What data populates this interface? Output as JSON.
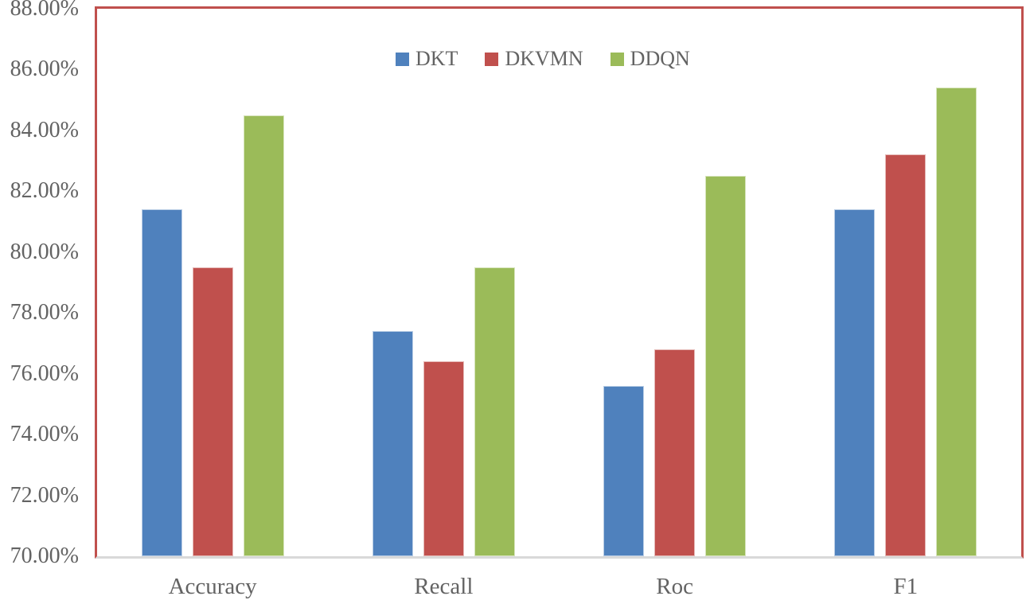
{
  "chart_data": {
    "type": "bar",
    "title": "",
    "categories": [
      "Accuracy",
      "Recall",
      "Roc",
      "F1"
    ],
    "series": [
      {
        "name": "DKT",
        "color": "#4F81BD",
        "border_color": "#B9CDE5",
        "values": [
          81.4,
          77.4,
          75.6,
          81.4
        ]
      },
      {
        "name": "DKVMN",
        "color": "#C0504D",
        "border_color": "#E5B9B7",
        "values": [
          79.5,
          76.4,
          76.8,
          83.2
        ]
      },
      {
        "name": "DDQN",
        "color": "#9BBB59",
        "border_color": "#D7E4BC",
        "values": [
          84.5,
          79.5,
          82.5,
          85.4
        ]
      }
    ],
    "ylabel": "",
    "xlabel": "",
    "ylim": [
      70,
      88
    ],
    "y_tick_step": 2,
    "y_tick_labels": [
      "88.00%",
      "86.00%",
      "84.00%",
      "82.00%",
      "80.00%",
      "78.00%",
      "76.00%",
      "74.00%",
      "72.00%",
      "70.00%"
    ],
    "value_unit": "%",
    "grid": false,
    "legend": {
      "position": "top-center",
      "labels": [
        "DKT",
        "DKVMN",
        "DDQN"
      ]
    },
    "colors": {
      "plot_border": "#C0504D",
      "axis_line": "#D9D9D9",
      "text": "#636363",
      "background": "#FFFFFF"
    }
  }
}
